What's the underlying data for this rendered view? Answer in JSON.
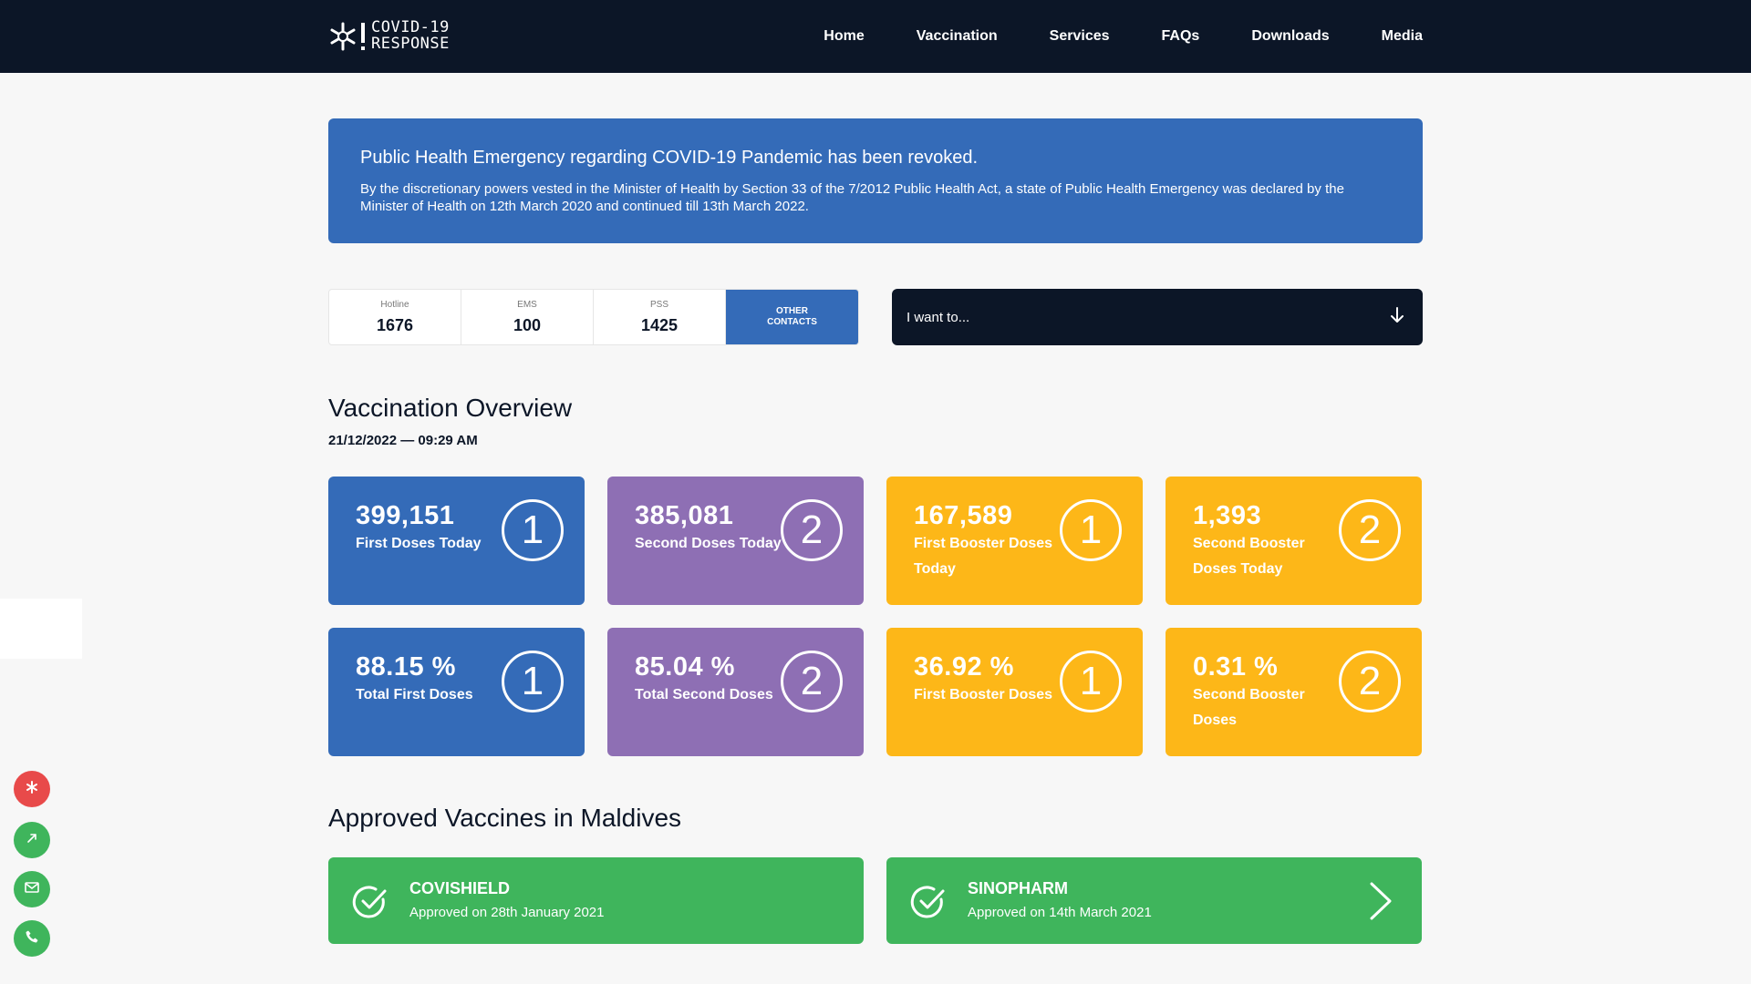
{
  "header": {
    "logo_line1": "COVID-19",
    "logo_line2": "RESPONSE",
    "nav": [
      "Home",
      "Vaccination",
      "Services",
      "FAQs",
      "Downloads",
      "Media"
    ]
  },
  "alert": {
    "title": "Public Health Emergency regarding COVID-19 Pandemic has been revoked.",
    "body": "By the discretionary powers vested in the Minister of Health by Section 33 of the 7/2012 Public Health Act, a state of Public Health Emergency was declared by the Minister of Health on 12th March 2020 and continued till 13th March 2022."
  },
  "contacts": {
    "items": [
      {
        "label": "Hotline",
        "number": "1676"
      },
      {
        "label": "EMS",
        "number": "100"
      },
      {
        "label": "PSS",
        "number": "1425"
      }
    ],
    "other_line1": "OTHER",
    "other_line2": "CONTACTS"
  },
  "want": {
    "label": "I want to..."
  },
  "overview": {
    "title": "Vaccination Overview",
    "date": "21/12/2022 — 09:29 AM",
    "cards": [
      {
        "value": "399,151",
        "label": "First Doses Today",
        "badge": "1",
        "color": "#346bb8"
      },
      {
        "value": "385,081",
        "label": "Second Doses Today",
        "badge": "2",
        "color": "#8e6fb4"
      },
      {
        "value": "167,589",
        "label": "First Booster Doses Today",
        "badge": "1",
        "color": "#fdb718"
      },
      {
        "value": "1,393",
        "label": "Second Booster Doses Today",
        "badge": "2",
        "color": "#fdb718"
      },
      {
        "value": "88.15 %",
        "label": "Total First Doses",
        "badge": "1",
        "color": "#346bb8"
      },
      {
        "value": "85.04 %",
        "label": "Total Second Doses",
        "badge": "2",
        "color": "#8e6fb4"
      },
      {
        "value": "36.92 %",
        "label": "First Booster Doses",
        "badge": "1",
        "color": "#fdb718"
      },
      {
        "value": "0.31 %",
        "label": "Second Booster Doses",
        "badge": "2",
        "color": "#fdb718"
      }
    ]
  },
  "vaccines": {
    "title": "Approved Vaccines in Maldives",
    "items": [
      {
        "name": "COVISHIELD",
        "date": "Approved on 28th January 2021"
      },
      {
        "name": "SINOPHARM",
        "date": "Approved on 14th March 2021"
      }
    ]
  },
  "side_buttons": [
    "covid-icon",
    "share-icon",
    "mail-icon",
    "phone-icon"
  ],
  "colors": {
    "navy": "#0c1627",
    "blue": "#346bb8",
    "purple": "#8e6fb4",
    "orange": "#fdb718",
    "green": "#3fb55c",
    "red": "#e84a4a"
  }
}
